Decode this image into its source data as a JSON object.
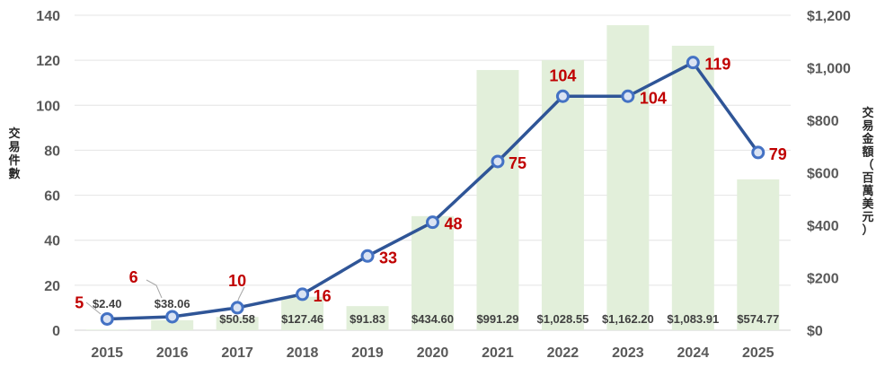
{
  "chart_data": {
    "type": "bar+line",
    "categories": [
      "2015",
      "2016",
      "2017",
      "2018",
      "2019",
      "2020",
      "2021",
      "2022",
      "2023",
      "2024",
      "2025"
    ],
    "series": [
      {
        "name": "交易金額（百萬美元）",
        "type": "bar",
        "axis": "right",
        "values": [
          2.4,
          38.06,
          50.58,
          127.46,
          91.83,
          434.6,
          991.29,
          1028.55,
          1162.2,
          1083.91,
          574.77
        ],
        "labels": [
          "$2.40",
          "$38.06",
          "$50.58",
          "$127.46",
          "$91.83",
          "$434.60",
          "$991.29",
          "$1,028.55",
          "$1,162.20",
          "$1,083.91",
          "$574.77"
        ],
        "color": "#e2efda"
      },
      {
        "name": "交易件數",
        "type": "line",
        "axis": "left",
        "values": [
          5,
          6,
          10,
          16,
          33,
          48,
          75,
          104,
          104,
          119,
          79
        ],
        "labels": [
          "5",
          "6",
          "10",
          "16",
          "33",
          "48",
          "75",
          "104",
          "104",
          "119",
          "79"
        ],
        "color": "#2f5597",
        "label_color": "#c00000"
      }
    ],
    "y_left": {
      "label": "交易件數",
      "range": [
        0,
        140
      ],
      "ticks": [
        "0",
        "20",
        "40",
        "60",
        "80",
        "100",
        "120",
        "140"
      ]
    },
    "y_right": {
      "label": "交易金額（百萬美元）",
      "range": [
        0,
        1200
      ],
      "ticks": [
        "$0",
        "$200",
        "$400",
        "$600",
        "$800",
        "$1,000",
        "$1,200"
      ]
    },
    "grid": true,
    "legend": "none"
  }
}
